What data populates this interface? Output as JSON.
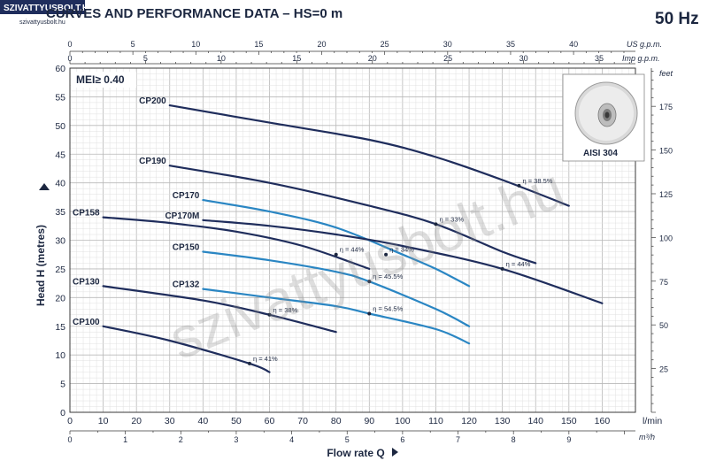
{
  "logo": {
    "text": "SZIVATTYUSBOLT.HU",
    "sub": "szivattyusbolt.hu"
  },
  "header": {
    "title": "CURVES AND PERFORMANCE DATA  –  HS=0 m",
    "frequency": "50 Hz"
  },
  "badge": {
    "mei": "MEI≥ 0.40"
  },
  "inset": {
    "label": "AISI 304"
  },
  "watermark": "szivattyusbolt.hu",
  "colors": {
    "dark": "#1f2d5c",
    "blue": "#2a86c3",
    "grid": "#cfcfcf",
    "text": "#1c2740"
  },
  "chart_data": {
    "type": "line",
    "title": "CURVES AND PERFORMANCE DATA  –  HS=0 m",
    "xlabel": "Flow rate Q",
    "ylabel": "Head H (metres)",
    "x_unit": "l/min",
    "xlim": [
      0,
      170
    ],
    "ylim": [
      0,
      60
    ],
    "x_ticks": [
      0,
      10,
      20,
      30,
      40,
      50,
      60,
      70,
      80,
      90,
      100,
      110,
      120,
      130,
      140,
      150,
      160
    ],
    "y_ticks": [
      5,
      10,
      15,
      20,
      25,
      30,
      35,
      40,
      45,
      50,
      55,
      60
    ],
    "y_tick_zero": "0",
    "secondary_axes": {
      "top_us": {
        "unit": "US g.p.m.",
        "ticks": [
          "0",
          "5",
          "10",
          "15",
          "20",
          "25",
          "30",
          "35",
          "40"
        ],
        "lpm_per_unit": 3.785
      },
      "top_imp": {
        "unit": "Imp g.p.m.",
        "ticks": [
          "0",
          "5",
          "10",
          "15",
          "20",
          "25",
          "30",
          "35"
        ],
        "lpm_per_unit": 4.546
      },
      "bottom_m3h": {
        "unit": "m³/h",
        "ticks": [
          "0",
          "1",
          "2",
          "3",
          "4",
          "5",
          "6",
          "7",
          "8",
          "9"
        ],
        "lpm_per_unit": 16.667
      },
      "right_feet": {
        "unit": "feet",
        "ticks": [
          "25",
          "50",
          "75",
          "100",
          "125",
          "150",
          "175"
        ],
        "m_per_unit": 0.3048
      }
    },
    "series": [
      {
        "name": "CP200",
        "color": "dark",
        "points": [
          [
            30,
            53.5
          ],
          [
            60,
            50.5
          ],
          [
            90,
            47.5
          ],
          [
            110,
            44.5
          ],
          [
            130,
            40.5
          ],
          [
            150,
            36
          ]
        ],
        "eff_label": "η = 38.5%",
        "eff_at": [
          135,
          39.5
        ]
      },
      {
        "name": "CP190",
        "color": "dark",
        "points": [
          [
            30,
            43
          ],
          [
            60,
            40
          ],
          [
            90,
            36
          ],
          [
            110,
            32.8
          ],
          [
            130,
            28
          ],
          [
            140,
            26
          ]
        ],
        "eff_label": "η = 33%",
        "eff_at": [
          110,
          32.8
        ]
      },
      {
        "name": "CP170",
        "color": "blue",
        "points": [
          [
            40,
            37
          ],
          [
            60,
            35
          ],
          [
            80,
            32.2
          ],
          [
            100,
            27.5
          ],
          [
            110,
            25
          ],
          [
            120,
            22
          ]
        ],
        "eff_label": "η = 34%",
        "eff_at": [
          95,
          27.5
        ]
      },
      {
        "name": "CP170M",
        "color": "dark",
        "points": [
          [
            40,
            33.5
          ],
          [
            60,
            32.5
          ],
          [
            80,
            31
          ],
          [
            100,
            29
          ],
          [
            130,
            25
          ],
          [
            160,
            19
          ]
        ],
        "eff_label": "η = 44%",
        "eff_at": [
          130,
          25
        ]
      },
      {
        "name": "CP158",
        "color": "dark",
        "points": [
          [
            10,
            34
          ],
          [
            30,
            33
          ],
          [
            50,
            31.5
          ],
          [
            70,
            29
          ],
          [
            90,
            25
          ]
        ],
        "eff_label": "η = 44%",
        "eff_at": [
          80,
          27.5
        ]
      },
      {
        "name": "CP150",
        "color": "blue",
        "points": [
          [
            40,
            28
          ],
          [
            60,
            26.5
          ],
          [
            80,
            24.5
          ],
          [
            90,
            22.8
          ],
          [
            110,
            18
          ],
          [
            120,
            15
          ]
        ],
        "eff_label": "η = 45.5%",
        "eff_at": [
          90,
          22.8
        ]
      },
      {
        "name": "CP132",
        "color": "blue",
        "points": [
          [
            40,
            21.5
          ],
          [
            60,
            20
          ],
          [
            80,
            18.5
          ],
          [
            90,
            17.2
          ],
          [
            110,
            14.5
          ],
          [
            120,
            12
          ]
        ],
        "eff_label": "η = 54.5%",
        "eff_at": [
          90,
          17.2
        ]
      },
      {
        "name": "CP130",
        "color": "dark",
        "points": [
          [
            10,
            22
          ],
          [
            40,
            19.5
          ],
          [
            60,
            17
          ],
          [
            80,
            14
          ]
        ],
        "eff_label": "η = 38%",
        "eff_at": [
          60,
          17
        ]
      },
      {
        "name": "CP100",
        "color": "dark",
        "points": [
          [
            10,
            15
          ],
          [
            30,
            12.5
          ],
          [
            54,
            8.5
          ],
          [
            60,
            7
          ]
        ],
        "eff_label": "η = 41%",
        "eff_at": [
          54,
          8.5
        ]
      }
    ]
  }
}
